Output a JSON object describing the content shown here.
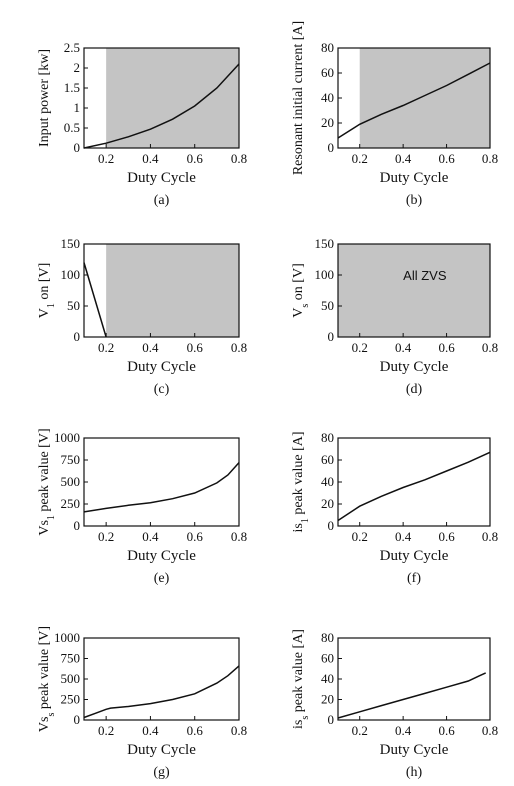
{
  "chart_data": [
    {
      "id": "a",
      "type": "line",
      "caption": "(a)",
      "xlabel": "Duty Cycle",
      "ylabel": "Input power [kw]",
      "xlim": [
        0.1,
        0.8
      ],
      "ylim": [
        0,
        2.5
      ],
      "xticks": [
        "0.2",
        "0.4",
        "0.6",
        "0.8"
      ],
      "xtick_values": [
        0.2,
        0.4,
        0.6,
        0.8
      ],
      "yticks": [
        "0",
        "0.5",
        "1",
        "1.5",
        "2",
        "2.5"
      ],
      "ytick_values": [
        0,
        0.5,
        1,
        1.5,
        2,
        2.5
      ],
      "shaded_x": [
        0.2,
        0.8
      ],
      "series": [
        {
          "x": [
            0.1,
            0.2,
            0.3,
            0.4,
            0.5,
            0.6,
            0.7,
            0.8
          ],
          "y": [
            0.0,
            0.12,
            0.28,
            0.47,
            0.72,
            1.05,
            1.5,
            2.1
          ]
        }
      ]
    },
    {
      "id": "b",
      "type": "line",
      "caption": "(b)",
      "xlabel": "Duty Cycle",
      "ylabel": "Resonant initial current [A]",
      "xlim": [
        0.1,
        0.8
      ],
      "ylim": [
        0,
        80
      ],
      "xticks": [
        "0.2",
        "0.4",
        "0.6",
        "0.8"
      ],
      "xtick_values": [
        0.2,
        0.4,
        0.6,
        0.8
      ],
      "yticks": [
        "0",
        "20",
        "40",
        "60",
        "80"
      ],
      "ytick_values": [
        0,
        20,
        40,
        60,
        80
      ],
      "shaded_x": [
        0.2,
        0.8
      ],
      "series": [
        {
          "x": [
            0.1,
            0.2,
            0.3,
            0.4,
            0.5,
            0.6,
            0.7,
            0.8
          ],
          "y": [
            8,
            19,
            27,
            34,
            42,
            50,
            59,
            68
          ]
        }
      ]
    },
    {
      "id": "c",
      "type": "line",
      "caption": "(c)",
      "xlabel": "Duty Cycle",
      "ylabel": "V",
      "ylabel_sub": "1",
      "ylabel_rest": " on [V]",
      "xlim": [
        0.1,
        0.8
      ],
      "ylim": [
        0,
        150
      ],
      "xticks": [
        "0.2",
        "0.4",
        "0.6",
        "0.8"
      ],
      "xtick_values": [
        0.2,
        0.4,
        0.6,
        0.8
      ],
      "yticks": [
        "0",
        "50",
        "100",
        "150"
      ],
      "ytick_values": [
        0,
        50,
        100,
        150
      ],
      "shaded_x": [
        0.2,
        0.8
      ],
      "series": [
        {
          "x": [
            0.1,
            0.2
          ],
          "y": [
            120,
            0
          ]
        }
      ]
    },
    {
      "id": "d",
      "type": "line",
      "caption": "(d)",
      "xlabel": "Duty Cycle",
      "ylabel": "V",
      "ylabel_sub": "s",
      "ylabel_rest": " on [V]",
      "xlim": [
        0.1,
        0.8
      ],
      "ylim": [
        0,
        150
      ],
      "xticks": [
        "0.2",
        "0.4",
        "0.6",
        "0.8"
      ],
      "xtick_values": [
        0.2,
        0.4,
        0.6,
        0.8
      ],
      "yticks": [
        "0",
        "50",
        "100",
        "150"
      ],
      "ytick_values": [
        0,
        50,
        100,
        150
      ],
      "shaded_x": [
        0.1,
        0.8
      ],
      "annotation": {
        "text": "All ZVS",
        "x": 0.5,
        "y": 92
      },
      "series": []
    },
    {
      "id": "e",
      "type": "line",
      "caption": "(e)",
      "xlabel": "Duty Cycle",
      "ylabel": "Vs",
      "ylabel_sub": "1",
      "ylabel_rest": " peak value [V]",
      "xlim": [
        0.1,
        0.8
      ],
      "ylim": [
        0,
        1000
      ],
      "xticks": [
        "0.2",
        "0.4",
        "0.6",
        "0.8"
      ],
      "xtick_values": [
        0.2,
        0.4,
        0.6,
        0.8
      ],
      "yticks": [
        "0",
        "250",
        "500",
        "750",
        "1000"
      ],
      "ytick_values": [
        0,
        250,
        500,
        750,
        1000
      ],
      "series": [
        {
          "x": [
            0.1,
            0.2,
            0.3,
            0.4,
            0.5,
            0.6,
            0.7,
            0.75,
            0.8
          ],
          "y": [
            160,
            200,
            235,
            265,
            310,
            375,
            490,
            580,
            720
          ]
        }
      ]
    },
    {
      "id": "f",
      "type": "line",
      "caption": "(f)",
      "xlabel": "Duty Cycle",
      "ylabel": "is",
      "ylabel_sub": "1",
      "ylabel_rest": " peak value [A]",
      "xlim": [
        0.1,
        0.8
      ],
      "ylim": [
        0,
        80
      ],
      "xticks": [
        "0.2",
        "0.4",
        "0.6",
        "0.8"
      ],
      "xtick_values": [
        0.2,
        0.4,
        0.6,
        0.8
      ],
      "yticks": [
        "0",
        "20",
        "40",
        "60",
        "80"
      ],
      "ytick_values": [
        0,
        20,
        40,
        60,
        80
      ],
      "series": [
        {
          "x": [
            0.1,
            0.2,
            0.3,
            0.4,
            0.5,
            0.6,
            0.7,
            0.8
          ],
          "y": [
            5,
            18,
            27,
            35,
            42,
            50,
            58,
            67
          ]
        }
      ]
    },
    {
      "id": "g",
      "type": "line",
      "caption": "(g)",
      "xlabel": "Duty Cycle",
      "ylabel": "Vs",
      "ylabel_sub": "s",
      "ylabel_rest": " peak value [V]",
      "xlim": [
        0.1,
        0.8
      ],
      "ylim": [
        0,
        1000
      ],
      "xticks": [
        "0.2",
        "0.4",
        "0.6",
        "0.8"
      ],
      "xtick_values": [
        0.2,
        0.4,
        0.6,
        0.8
      ],
      "yticks": [
        "0",
        "250",
        "500",
        "750",
        "1000"
      ],
      "ytick_values": [
        0,
        250,
        500,
        750,
        1000
      ],
      "series": [
        {
          "x": [
            0.1,
            0.15,
            0.2,
            0.22,
            0.3,
            0.4,
            0.5,
            0.6,
            0.7,
            0.75,
            0.8
          ],
          "y": [
            30,
            80,
            130,
            145,
            165,
            200,
            250,
            320,
            450,
            540,
            660
          ]
        }
      ]
    },
    {
      "id": "h",
      "type": "line",
      "caption": "(h)",
      "xlabel": "Duty Cycle",
      "ylabel": "is",
      "ylabel_sub": "s",
      "ylabel_rest": " peak value [A]",
      "xlim": [
        0.1,
        0.8
      ],
      "ylim": [
        0,
        80
      ],
      "xticks": [
        "0.2",
        "0.4",
        "0.6",
        "0.8"
      ],
      "xtick_values": [
        0.2,
        0.4,
        0.6,
        0.8
      ],
      "yticks": [
        "0",
        "20",
        "40",
        "60",
        "80"
      ],
      "ytick_values": [
        0,
        20,
        40,
        60,
        80
      ],
      "series": [
        {
          "x": [
            0.1,
            0.2,
            0.3,
            0.4,
            0.5,
            0.6,
            0.7,
            0.75,
            0.78
          ],
          "y": [
            2,
            8,
            14,
            20,
            26,
            32,
            38,
            43,
            46
          ]
        }
      ]
    }
  ]
}
